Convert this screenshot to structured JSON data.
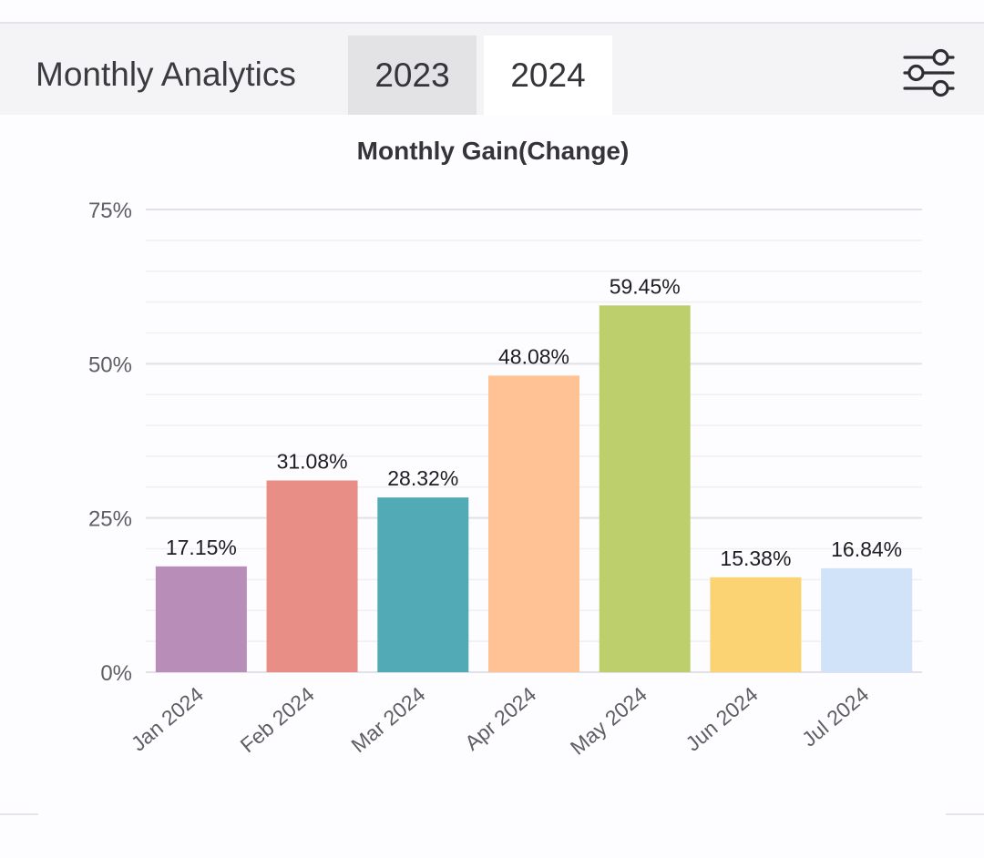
{
  "header": {
    "title": "Monthly Analytics",
    "tabs": [
      {
        "label": "2023",
        "active": false
      },
      {
        "label": "2024",
        "active": true
      }
    ],
    "filter_icon": "sliders-icon"
  },
  "chart_data": {
    "type": "bar",
    "title": "Monthly Gain(Change)",
    "xlabel": "",
    "ylabel": "",
    "categories": [
      "Jan 2024",
      "Feb 2024",
      "Mar 2024",
      "Apr 2024",
      "May 2024",
      "Jun 2024",
      "Jul 2024"
    ],
    "values": [
      17.15,
      31.08,
      28.32,
      48.08,
      59.45,
      15.38,
      16.84
    ],
    "value_labels": [
      "17.15%",
      "31.08%",
      "28.32%",
      "48.08%",
      "59.45%",
      "15.38%",
      "16.84%"
    ],
    "colors": [
      "#b88db8",
      "#e98e87",
      "#53aab7",
      "#ffc295",
      "#bdcf6c",
      "#fbd372",
      "#d0e3f8"
    ],
    "ylim": [
      0,
      75
    ],
    "yticks": [
      {
        "value": 0,
        "label": "0%"
      },
      {
        "value": 25,
        "label": "25%"
      },
      {
        "value": 50,
        "label": "50%"
      },
      {
        "value": 75,
        "label": "75%"
      }
    ],
    "grid": true,
    "legend": "none"
  }
}
